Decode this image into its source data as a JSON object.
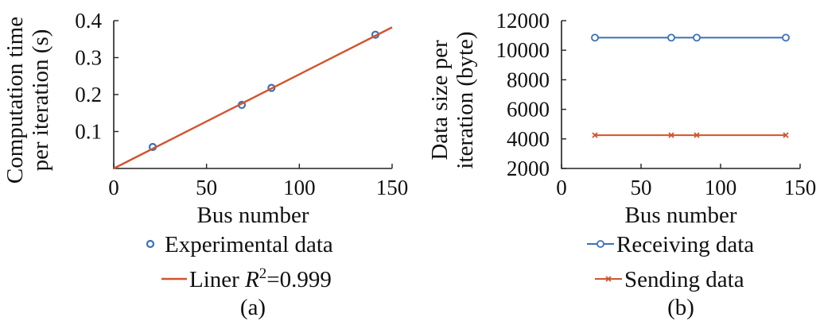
{
  "colors": {
    "blue": "#3a72b8",
    "red": "#d2532e",
    "axis": "#222222"
  },
  "chart_data": [
    {
      "type": "scatter",
      "panel_label": "(a)",
      "xlabel": "Bus number",
      "ylabel": [
        "Computation time",
        "per iteration (s)"
      ],
      "xlim": [
        0,
        150
      ],
      "ylim": [
        0,
        0.4
      ],
      "xticks": [
        "0",
        "50",
        "100",
        "150"
      ],
      "yticks": [
        "0.1",
        "0.2",
        "0.3",
        "0.4"
      ],
      "series": [
        {
          "name": "Experimental data",
          "kind": "markers",
          "marker": "circle",
          "color": "#3a72b8",
          "x": [
            21,
            69,
            85,
            141
          ],
          "y": [
            0.058,
            0.172,
            0.218,
            0.362
          ]
        },
        {
          "name_prefix": "Liner ",
          "name_var": "R",
          "name_sup": "2",
          "name_suffix": "=0.999",
          "kind": "line",
          "color": "#d2532e",
          "x": [
            0,
            150
          ],
          "y": [
            0.0,
            0.382
          ]
        }
      ]
    },
    {
      "type": "line",
      "panel_label": "(b)",
      "xlabel": "Bus number",
      "ylabel": [
        "Data size per",
        "iteration (byte)"
      ],
      "xlim": [
        0,
        150
      ],
      "ylim": [
        2000,
        12000
      ],
      "xticks": [
        "0",
        "50",
        "100",
        "150"
      ],
      "yticks": [
        "2000",
        "4000",
        "6000",
        "8000",
        "10000",
        "12000"
      ],
      "series": [
        {
          "name": "Receiving data",
          "marker": "circle",
          "color": "#3a72b8",
          "x": [
            21,
            69,
            85,
            141
          ],
          "y": [
            10850,
            10850,
            10850,
            10850
          ]
        },
        {
          "name": "Sending data",
          "marker": "x",
          "color": "#d2532e",
          "x": [
            21,
            69,
            85,
            141
          ],
          "y": [
            4250,
            4250,
            4250,
            4250
          ]
        }
      ]
    }
  ]
}
